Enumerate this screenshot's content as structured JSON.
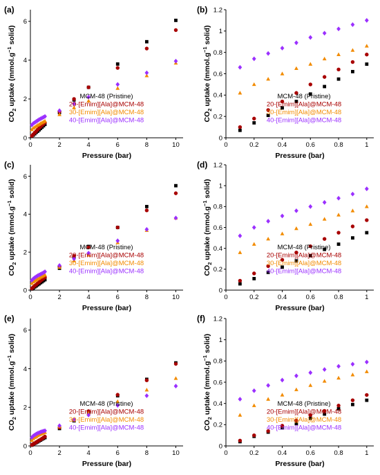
{
  "figure": {
    "legend_entries": [
      {
        "label": "MCM-48 (Pristine)",
        "color": "#000000",
        "marker": "square"
      },
      {
        "label": "20-[Emim][Ala]@MCM-48",
        "color": "#a80000",
        "marker": "circle"
      },
      {
        "label": "30-[Emim][Ala]@MCM-48",
        "color": "#f28b00",
        "marker": "triangle"
      },
      {
        "label": "40-[Emim][Ala]@MCM-48",
        "color": "#9b30ff",
        "marker": "diamond"
      }
    ]
  },
  "chart_data": [
    {
      "panel": "(a)",
      "type": "scatter",
      "xlabel": "",
      "ylabel": "CO2 uptake (mmol.g-1 solid)",
      "xlim": [
        0,
        10.5
      ],
      "ylim": [
        0,
        6.6
      ],
      "xticks": [
        0,
        2,
        4,
        6,
        8,
        10
      ],
      "yticks": [
        0,
        2,
        4,
        6
      ],
      "legend_position": "lower-right",
      "series": [
        {
          "name": "MCM-48 (Pristine)",
          "x": [
            0.1,
            0.2,
            0.3,
            0.4,
            0.5,
            0.6,
            0.7,
            0.8,
            0.9,
            1,
            2,
            3,
            4,
            6,
            8,
            10
          ],
          "y": [
            0.07,
            0.14,
            0.21,
            0.28,
            0.34,
            0.41,
            0.48,
            0.55,
            0.62,
            0.69,
            1.3,
            1.95,
            2.6,
            3.8,
            4.95,
            6.05
          ]
        },
        {
          "name": "20-[Emim][Ala]@MCM-48",
          "x": [
            0.1,
            0.2,
            0.3,
            0.4,
            0.5,
            0.6,
            0.7,
            0.8,
            0.9,
            1,
            2,
            3,
            4,
            6,
            8,
            10
          ],
          "y": [
            0.1,
            0.18,
            0.26,
            0.34,
            0.42,
            0.5,
            0.57,
            0.64,
            0.71,
            0.78,
            1.35,
            2.0,
            2.6,
            3.6,
            4.6,
            5.55
          ]
        },
        {
          "name": "30-[Emim][Ala]@MCM-48",
          "x": [
            0.1,
            0.2,
            0.3,
            0.4,
            0.5,
            0.6,
            0.7,
            0.8,
            0.9,
            1,
            2,
            3,
            4,
            6,
            8,
            10
          ],
          "y": [
            0.42,
            0.5,
            0.55,
            0.6,
            0.65,
            0.69,
            0.74,
            0.78,
            0.82,
            0.86,
            1.2,
            1.55,
            1.9,
            2.55,
            3.2,
            3.85
          ]
        },
        {
          "name": "40-[Emim][Ala]@MCM-48",
          "x": [
            0.1,
            0.2,
            0.3,
            0.4,
            0.5,
            0.6,
            0.7,
            0.8,
            0.9,
            1,
            2,
            3,
            4,
            6,
            8,
            10
          ],
          "y": [
            0.66,
            0.74,
            0.79,
            0.84,
            0.89,
            0.94,
            0.98,
            1.02,
            1.06,
            1.1,
            1.4,
            1.75,
            2.1,
            2.75,
            3.35,
            3.95
          ]
        }
      ]
    },
    {
      "panel": "(b)",
      "type": "scatter",
      "xlabel": "",
      "ylabel": "CO2 uptake (mmol.g-1 solid)",
      "xlim": [
        0,
        1.05
      ],
      "ylim": [
        0,
        1.2
      ],
      "xticks": [
        0,
        0.2,
        0.4,
        0.6,
        0.8,
        1
      ],
      "yticks": [
        0,
        0.2,
        0.4,
        0.6,
        0.8,
        1,
        1.2
      ],
      "legend_position": "lower-right",
      "series": [
        {
          "name": "MCM-48 (Pristine)",
          "x": [
            0.1,
            0.2,
            0.3,
            0.4,
            0.5,
            0.6,
            0.7,
            0.8,
            0.9,
            1
          ],
          "y": [
            0.07,
            0.14,
            0.21,
            0.28,
            0.34,
            0.41,
            0.48,
            0.55,
            0.62,
            0.69
          ]
        },
        {
          "name": "20-[Emim][Ala]@MCM-48",
          "x": [
            0.1,
            0.2,
            0.3,
            0.4,
            0.5,
            0.6,
            0.7,
            0.8,
            0.9,
            1
          ],
          "y": [
            0.1,
            0.18,
            0.26,
            0.34,
            0.42,
            0.5,
            0.57,
            0.64,
            0.71,
            0.78
          ]
        },
        {
          "name": "30-[Emim][Ala]@MCM-48",
          "x": [
            0.1,
            0.2,
            0.3,
            0.4,
            0.5,
            0.6,
            0.7,
            0.8,
            0.9,
            1
          ],
          "y": [
            0.42,
            0.5,
            0.55,
            0.6,
            0.65,
            0.69,
            0.74,
            0.78,
            0.82,
            0.86
          ]
        },
        {
          "name": "40-[Emim][Ala]@MCM-48",
          "x": [
            0.1,
            0.2,
            0.3,
            0.4,
            0.5,
            0.6,
            0.7,
            0.8,
            0.9,
            1
          ],
          "y": [
            0.66,
            0.74,
            0.79,
            0.84,
            0.89,
            0.94,
            0.98,
            1.02,
            1.06,
            1.1
          ]
        }
      ]
    },
    {
      "panel": "(c)",
      "type": "scatter",
      "xlabel": "",
      "ylabel": "CO2 uptake (mmol.g-1 solid)",
      "xlim": [
        0,
        10.5
      ],
      "ylim": [
        0,
        6.6
      ],
      "xticks": [
        0,
        2,
        4,
        6,
        8,
        10
      ],
      "yticks": [
        0,
        2,
        4,
        6
      ],
      "legend_position": "lower-right",
      "series": [
        {
          "name": "MCM-48 (Pristine)",
          "x": [
            0.1,
            0.2,
            0.3,
            0.4,
            0.5,
            0.6,
            0.7,
            0.8,
            0.9,
            1,
            2,
            3,
            4,
            6,
            8,
            10
          ],
          "y": [
            0.06,
            0.11,
            0.17,
            0.22,
            0.28,
            0.33,
            0.39,
            0.44,
            0.5,
            0.55,
            1.15,
            1.75,
            2.3,
            3.3,
            4.4,
            5.5
          ]
        },
        {
          "name": "20-[Emim][Ala]@MCM-48",
          "x": [
            0.1,
            0.2,
            0.3,
            0.4,
            0.5,
            0.6,
            0.7,
            0.8,
            0.9,
            1,
            2,
            3,
            4,
            6,
            8,
            10
          ],
          "y": [
            0.09,
            0.16,
            0.23,
            0.29,
            0.36,
            0.42,
            0.49,
            0.55,
            0.61,
            0.67,
            1.25,
            1.8,
            2.25,
            3.3,
            4.2,
            5.1
          ]
        },
        {
          "name": "30-[Emim][Ala]@MCM-48",
          "x": [
            0.1,
            0.2,
            0.3,
            0.4,
            0.5,
            0.6,
            0.7,
            0.8,
            0.9,
            1,
            2,
            3,
            4,
            6,
            8,
            10
          ],
          "y": [
            0.36,
            0.44,
            0.49,
            0.54,
            0.59,
            0.63,
            0.68,
            0.72,
            0.76,
            0.8,
            1.2,
            1.55,
            1.85,
            2.5,
            3.15,
            3.8
          ]
        },
        {
          "name": "40-[Emim][Ala]@MCM-48",
          "x": [
            0.1,
            0.2,
            0.3,
            0.4,
            0.5,
            0.6,
            0.7,
            0.8,
            0.9,
            1,
            2,
            3,
            4,
            6,
            8,
            10
          ],
          "y": [
            0.52,
            0.6,
            0.66,
            0.71,
            0.76,
            0.8,
            0.84,
            0.88,
            0.92,
            0.97,
            1.3,
            1.65,
            1.95,
            2.6,
            3.2,
            3.8
          ]
        }
      ]
    },
    {
      "panel": "(d)",
      "type": "scatter",
      "xlabel": "",
      "ylabel": "CO2 uptake (mmol.g-1 solid)",
      "xlim": [
        0,
        1.05
      ],
      "ylim": [
        0,
        1.2
      ],
      "xticks": [
        0,
        0.2,
        0.4,
        0.6,
        0.8,
        1
      ],
      "yticks": [
        0,
        0.2,
        0.4,
        0.6,
        0.8,
        1,
        1.2
      ],
      "legend_position": "lower-right",
      "series": [
        {
          "name": "MCM-48 (Pristine)",
          "x": [
            0.1,
            0.2,
            0.3,
            0.4,
            0.5,
            0.6,
            0.7,
            0.8,
            0.9,
            1
          ],
          "y": [
            0.06,
            0.11,
            0.17,
            0.22,
            0.28,
            0.33,
            0.39,
            0.44,
            0.5,
            0.55
          ]
        },
        {
          "name": "20-[Emim][Ala]@MCM-48",
          "x": [
            0.1,
            0.2,
            0.3,
            0.4,
            0.5,
            0.6,
            0.7,
            0.8,
            0.9,
            1
          ],
          "y": [
            0.09,
            0.16,
            0.23,
            0.29,
            0.36,
            0.42,
            0.49,
            0.55,
            0.61,
            0.67
          ]
        },
        {
          "name": "30-[Emim][Ala]@MCM-48",
          "x": [
            0.1,
            0.2,
            0.3,
            0.4,
            0.5,
            0.6,
            0.7,
            0.8,
            0.9,
            1
          ],
          "y": [
            0.36,
            0.44,
            0.49,
            0.54,
            0.59,
            0.63,
            0.68,
            0.72,
            0.76,
            0.8
          ]
        },
        {
          "name": "40-[Emim][Ala]@MCM-48",
          "x": [
            0.1,
            0.2,
            0.3,
            0.4,
            0.5,
            0.6,
            0.7,
            0.8,
            0.9,
            1
          ],
          "y": [
            0.52,
            0.6,
            0.66,
            0.71,
            0.76,
            0.8,
            0.84,
            0.88,
            0.92,
            0.97
          ]
        }
      ]
    },
    {
      "panel": "(e)",
      "type": "scatter",
      "xlabel": "Pressure (bar)",
      "ylabel": "CO2 uptake (mmol.g-1 solid)",
      "xlim": [
        0,
        10.5
      ],
      "ylim": [
        0,
        6.6
      ],
      "xticks": [
        0,
        2,
        4,
        6,
        8,
        10
      ],
      "yticks": [
        0,
        2,
        4,
        6
      ],
      "legend_position": "lower-right",
      "series": [
        {
          "name": "MCM-48 (Pristine)",
          "x": [
            0.1,
            0.2,
            0.3,
            0.4,
            0.5,
            0.6,
            0.7,
            0.8,
            0.9,
            1,
            2,
            3,
            4,
            6,
            8,
            10
          ],
          "y": [
            0.04,
            0.09,
            0.13,
            0.17,
            0.21,
            0.26,
            0.3,
            0.35,
            0.39,
            0.43,
            0.9,
            1.3,
            1.75,
            2.6,
            3.45,
            4.3
          ]
        },
        {
          "name": "20-[Emim][Ala]@MCM-48",
          "x": [
            0.1,
            0.2,
            0.3,
            0.4,
            0.5,
            0.6,
            0.7,
            0.8,
            0.9,
            1,
            2,
            3,
            4,
            6,
            8,
            10
          ],
          "y": [
            0.05,
            0.1,
            0.14,
            0.19,
            0.24,
            0.29,
            0.33,
            0.38,
            0.43,
            0.48,
            0.95,
            1.35,
            1.8,
            2.65,
            3.4,
            4.25
          ]
        },
        {
          "name": "30-[Emim][Ala]@MCM-48",
          "x": [
            0.1,
            0.2,
            0.3,
            0.4,
            0.5,
            0.6,
            0.7,
            0.8,
            0.9,
            1,
            2,
            3,
            4,
            6,
            8,
            10
          ],
          "y": [
            0.29,
            0.38,
            0.44,
            0.48,
            0.53,
            0.57,
            0.61,
            0.64,
            0.67,
            0.7,
            1.0,
            1.35,
            1.7,
            2.3,
            2.9,
            3.5
          ]
        },
        {
          "name": "40-[Emim][Ala]@MCM-48",
          "x": [
            0.1,
            0.2,
            0.3,
            0.4,
            0.5,
            0.6,
            0.7,
            0.8,
            0.9,
            1,
            2,
            3,
            4,
            6,
            8,
            10
          ],
          "y": [
            0.44,
            0.52,
            0.57,
            0.62,
            0.66,
            0.69,
            0.72,
            0.75,
            0.77,
            0.79,
            1.05,
            1.35,
            1.6,
            2.1,
            2.6,
            3.1
          ]
        }
      ]
    },
    {
      "panel": "(f)",
      "type": "scatter",
      "xlabel": "Pressure (bar)",
      "ylabel": "CO2 uptake (mmol.g-1 solid)",
      "xlim": [
        0,
        1.05
      ],
      "ylim": [
        0,
        1.2
      ],
      "xticks": [
        0,
        0.2,
        0.4,
        0.6,
        0.8,
        1
      ],
      "yticks": [
        0,
        0.2,
        0.4,
        0.6,
        0.8,
        1,
        1.2
      ],
      "legend_position": "lower-right",
      "series": [
        {
          "name": "MCM-48 (Pristine)",
          "x": [
            0.1,
            0.2,
            0.3,
            0.4,
            0.5,
            0.6,
            0.7,
            0.8,
            0.9,
            1
          ],
          "y": [
            0.04,
            0.09,
            0.13,
            0.17,
            0.21,
            0.26,
            0.3,
            0.35,
            0.39,
            0.43
          ]
        },
        {
          "name": "20-[Emim][Ala]@MCM-48",
          "x": [
            0.1,
            0.2,
            0.3,
            0.4,
            0.5,
            0.6,
            0.7,
            0.8,
            0.9,
            1
          ],
          "y": [
            0.05,
            0.1,
            0.14,
            0.19,
            0.24,
            0.29,
            0.33,
            0.38,
            0.43,
            0.48
          ]
        },
        {
          "name": "30-[Emim][Ala]@MCM-48",
          "x": [
            0.1,
            0.2,
            0.3,
            0.4,
            0.5,
            0.6,
            0.7,
            0.8,
            0.9,
            1
          ],
          "y": [
            0.29,
            0.38,
            0.44,
            0.48,
            0.53,
            0.57,
            0.61,
            0.64,
            0.67,
            0.7
          ]
        },
        {
          "name": "40-[Emim][Ala]@MCM-48",
          "x": [
            0.1,
            0.2,
            0.3,
            0.4,
            0.5,
            0.6,
            0.7,
            0.8,
            0.9,
            1
          ],
          "y": [
            0.44,
            0.52,
            0.57,
            0.62,
            0.66,
            0.69,
            0.72,
            0.75,
            0.77,
            0.79
          ]
        }
      ]
    }
  ]
}
